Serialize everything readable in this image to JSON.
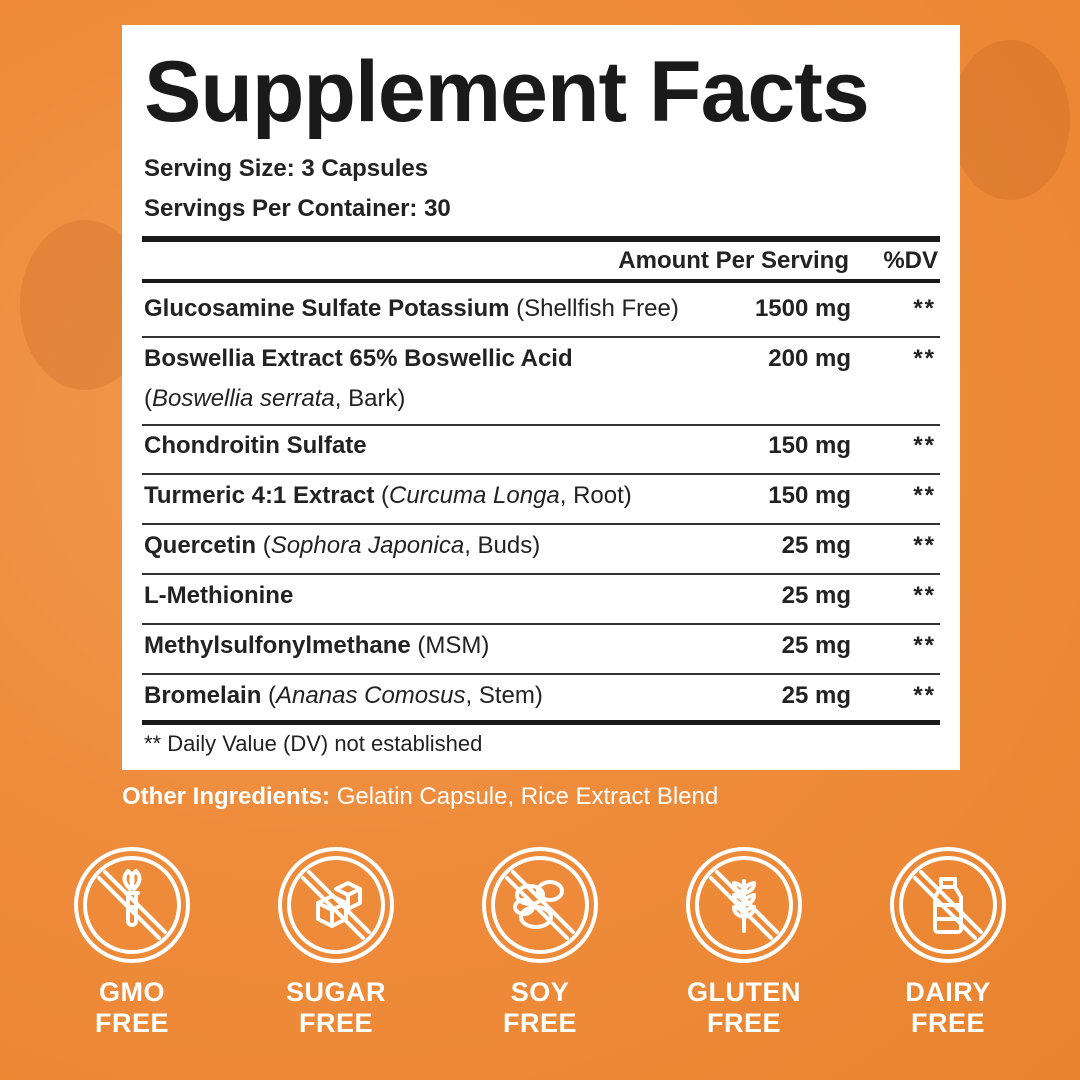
{
  "panel": {
    "title": "Supplement Facts",
    "serving_size": "Serving Size: 3 Capsules",
    "servings_per_container": "Servings Per Container: 30",
    "header_amount": "Amount Per Serving",
    "header_dv": "%DV",
    "ingredients": [
      {
        "name": "Glucosamine Sulfate Potassium",
        "detail": [
          {
            "t": " (Shellfish Free)",
            "i": false
          }
        ],
        "amount": "1500 mg",
        "dv": "**"
      },
      {
        "name": "Boswellia Extract 65% Boswellic Acid",
        "detail2": [
          {
            "t": "(",
            "i": false
          },
          {
            "t": "Boswellia serrata",
            "i": true
          },
          {
            "t": ", Bark)",
            "i": false
          }
        ],
        "amount": "200 mg",
        "dv": "**"
      },
      {
        "name": "Chondroitin Sulfate",
        "amount": "150 mg",
        "dv": "**"
      },
      {
        "name": "Turmeric 4:1 Extract",
        "detail": [
          {
            "t": " (",
            "i": false
          },
          {
            "t": "Curcuma Longa",
            "i": true
          },
          {
            "t": ", Root)",
            "i": false
          }
        ],
        "amount": "150 mg",
        "dv": "**"
      },
      {
        "name": "Quercetin",
        "detail": [
          {
            "t": " (",
            "i": false
          },
          {
            "t": "Sophora Japonica",
            "i": true
          },
          {
            "t": ", Buds)",
            "i": false
          }
        ],
        "amount": "25 mg",
        "dv": "**"
      },
      {
        "name": "L-Methionine",
        "amount": "25 mg",
        "dv": "**"
      },
      {
        "name": "Methylsulfonylmethane",
        "detail": [
          {
            "t": " (MSM)",
            "i": false
          }
        ],
        "amount": "25 mg",
        "dv": "**"
      },
      {
        "name": "Bromelain",
        "detail": [
          {
            "t": " (",
            "i": false
          },
          {
            "t": "Ananas Comosus",
            "i": true
          },
          {
            "t": ", Stem)",
            "i": false
          }
        ],
        "amount": "25 mg",
        "dv": "**"
      }
    ],
    "footnote": "** Daily Value (DV) not established"
  },
  "other_ingredients": {
    "label": "Other Ingredients:",
    "value": " Gelatin Capsule, Rice Extract Blend"
  },
  "badges": [
    {
      "icon": "gmo-free-icon",
      "line1": "GMO",
      "line2": "FREE"
    },
    {
      "icon": "sugar-free-icon",
      "line1": "SUGAR",
      "line2": "FREE"
    },
    {
      "icon": "soy-free-icon",
      "line1": "SOY",
      "line2": "FREE"
    },
    {
      "icon": "gluten-free-icon",
      "line1": "GLUTEN",
      "line2": "FREE"
    },
    {
      "icon": "dairy-free-icon",
      "line1": "DAIRY",
      "line2": "FREE"
    }
  ],
  "colors": {
    "background": "#ef8c3c",
    "panel": "#ffffff",
    "text": "#1a1a1a"
  }
}
